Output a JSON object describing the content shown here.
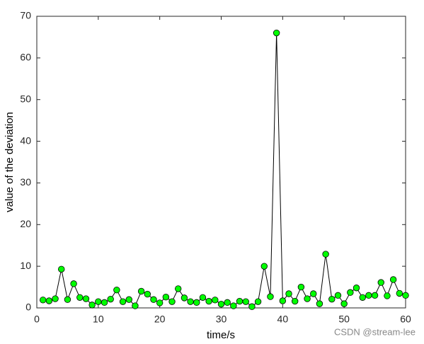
{
  "chart_data": {
    "type": "line",
    "xlabel": "time/s",
    "ylabel": "value of the deviation",
    "watermark": "CSDN @stream-lee",
    "x": [
      1,
      2,
      3,
      4,
      5,
      6,
      7,
      8,
      9,
      10,
      11,
      12,
      13,
      14,
      15,
      16,
      17,
      18,
      19,
      20,
      21,
      22,
      23,
      24,
      25,
      26,
      27,
      28,
      29,
      30,
      31,
      32,
      33,
      34,
      35,
      36,
      37,
      38,
      39,
      40,
      41,
      42,
      43,
      44,
      45,
      46,
      47,
      48,
      49,
      50,
      51,
      52,
      53,
      54,
      55,
      56,
      57,
      58,
      59,
      60
    ],
    "series": [
      {
        "name": "deviation",
        "color": "#000000",
        "marker_color": "#00ff00",
        "values": [
          1.9,
          1.7,
          2.2,
          9.3,
          2.0,
          5.8,
          2.5,
          2.2,
          0.7,
          1.5,
          1.3,
          2.1,
          4.3,
          1.5,
          2.0,
          0.5,
          4.0,
          3.3,
          2.0,
          1.2,
          2.6,
          1.5,
          4.6,
          2.4,
          1.5,
          1.3,
          2.5,
          1.6,
          1.9,
          0.9,
          1.3,
          0.5,
          1.6,
          1.5,
          0.3,
          1.5,
          10.0,
          2.7,
          66,
          1.7,
          3.4,
          1.6,
          5.0,
          2.2,
          3.4,
          1.0,
          12.9,
          2.1,
          3.0,
          1.0,
          3.7,
          4.8,
          2.5,
          3.0,
          3.0,
          6.1,
          2.9,
          6.8,
          3.5,
          3.0
        ]
      }
    ],
    "xlim": [
      0,
      60
    ],
    "xticks": [
      0,
      10,
      20,
      30,
      40,
      50,
      60
    ],
    "ylim": [
      0,
      70
    ],
    "yticks": [
      0,
      10,
      20,
      30,
      40,
      50,
      60,
      70
    ],
    "grid": false
  }
}
